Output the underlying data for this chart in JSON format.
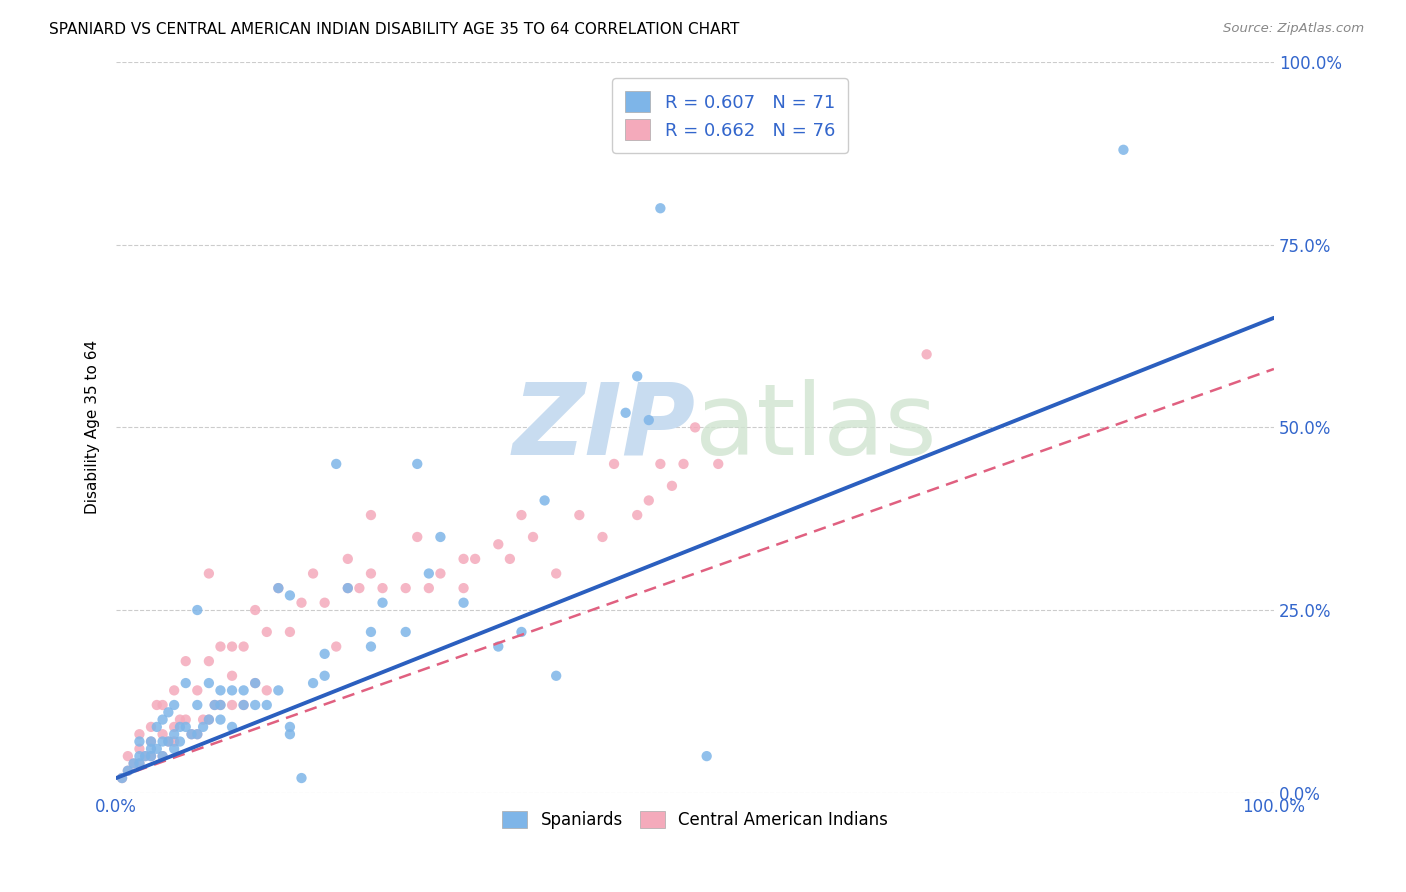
{
  "title": "SPANIARD VS CENTRAL AMERICAN INDIAN DISABILITY AGE 35 TO 64 CORRELATION CHART",
  "source": "Source: ZipAtlas.com",
  "ylabel": "Disability Age 35 to 64",
  "xlim": [
    0,
    1.0
  ],
  "ylim": [
    0,
    1.0
  ],
  "xtick_labels": [
    "0.0%",
    "100.0%"
  ],
  "ytick_labels": [
    "0.0%",
    "25.0%",
    "50.0%",
    "75.0%",
    "100.0%"
  ],
  "ytick_positions": [
    0.0,
    0.25,
    0.5,
    0.75,
    1.0
  ],
  "xtick_positions": [
    0.0,
    1.0
  ],
  "color_spaniard": "#7EB5E8",
  "color_cai": "#F4AABB",
  "color_line_spaniard": "#2B5FBF",
  "color_line_cai": "#E06080",
  "watermark_color": "#D8E8F5",
  "spaniard_x": [
    0.005,
    0.01,
    0.015,
    0.02,
    0.02,
    0.02,
    0.025,
    0.03,
    0.03,
    0.03,
    0.035,
    0.035,
    0.04,
    0.04,
    0.04,
    0.045,
    0.045,
    0.05,
    0.05,
    0.05,
    0.055,
    0.055,
    0.06,
    0.06,
    0.065,
    0.07,
    0.07,
    0.07,
    0.075,
    0.08,
    0.08,
    0.085,
    0.09,
    0.09,
    0.09,
    0.1,
    0.1,
    0.11,
    0.11,
    0.12,
    0.12,
    0.13,
    0.14,
    0.14,
    0.15,
    0.15,
    0.16,
    0.17,
    0.18,
    0.18,
    0.19,
    0.2,
    0.22,
    0.22,
    0.23,
    0.25,
    0.26,
    0.27,
    0.28,
    0.3,
    0.15,
    0.33,
    0.35,
    0.37,
    0.38,
    0.44,
    0.45,
    0.46,
    0.47,
    0.51,
    0.87
  ],
  "spaniard_y": [
    0.02,
    0.03,
    0.04,
    0.04,
    0.05,
    0.07,
    0.05,
    0.05,
    0.06,
    0.07,
    0.06,
    0.09,
    0.05,
    0.07,
    0.1,
    0.07,
    0.11,
    0.06,
    0.08,
    0.12,
    0.07,
    0.09,
    0.09,
    0.15,
    0.08,
    0.08,
    0.12,
    0.25,
    0.09,
    0.1,
    0.15,
    0.12,
    0.1,
    0.12,
    0.14,
    0.09,
    0.14,
    0.12,
    0.14,
    0.12,
    0.15,
    0.12,
    0.14,
    0.28,
    0.09,
    0.27,
    0.02,
    0.15,
    0.16,
    0.19,
    0.45,
    0.28,
    0.2,
    0.22,
    0.26,
    0.22,
    0.45,
    0.3,
    0.35,
    0.26,
    0.08,
    0.2,
    0.22,
    0.4,
    0.16,
    0.52,
    0.57,
    0.51,
    0.8,
    0.05,
    0.88
  ],
  "cai_x": [
    0.005,
    0.01,
    0.01,
    0.015,
    0.02,
    0.02,
    0.02,
    0.025,
    0.03,
    0.03,
    0.03,
    0.035,
    0.04,
    0.04,
    0.04,
    0.045,
    0.05,
    0.05,
    0.05,
    0.055,
    0.06,
    0.06,
    0.065,
    0.07,
    0.07,
    0.075,
    0.08,
    0.08,
    0.08,
    0.085,
    0.09,
    0.09,
    0.1,
    0.1,
    0.1,
    0.11,
    0.11,
    0.12,
    0.12,
    0.13,
    0.13,
    0.14,
    0.15,
    0.16,
    0.17,
    0.18,
    0.19,
    0.2,
    0.2,
    0.21,
    0.22,
    0.22,
    0.23,
    0.25,
    0.26,
    0.27,
    0.28,
    0.3,
    0.3,
    0.31,
    0.33,
    0.34,
    0.35,
    0.36,
    0.38,
    0.4,
    0.42,
    0.43,
    0.45,
    0.46,
    0.47,
    0.48,
    0.49,
    0.5,
    0.52,
    0.7
  ],
  "cai_y": [
    0.02,
    0.03,
    0.05,
    0.04,
    0.04,
    0.06,
    0.08,
    0.05,
    0.05,
    0.07,
    0.09,
    0.12,
    0.05,
    0.08,
    0.12,
    0.07,
    0.07,
    0.09,
    0.14,
    0.1,
    0.1,
    0.18,
    0.08,
    0.08,
    0.14,
    0.1,
    0.1,
    0.18,
    0.3,
    0.12,
    0.12,
    0.2,
    0.12,
    0.16,
    0.2,
    0.12,
    0.2,
    0.15,
    0.25,
    0.14,
    0.22,
    0.28,
    0.22,
    0.26,
    0.3,
    0.26,
    0.2,
    0.28,
    0.32,
    0.28,
    0.3,
    0.38,
    0.28,
    0.28,
    0.35,
    0.28,
    0.3,
    0.28,
    0.32,
    0.32,
    0.34,
    0.32,
    0.38,
    0.35,
    0.3,
    0.38,
    0.35,
    0.45,
    0.38,
    0.4,
    0.45,
    0.42,
    0.45,
    0.5,
    0.45,
    0.6
  ],
  "line_spaniard_x0": 0.0,
  "line_spaniard_y0": 0.02,
  "line_spaniard_x1": 1.0,
  "line_spaniard_y1": 0.65,
  "line_cai_x0": 0.0,
  "line_cai_y0": 0.02,
  "line_cai_x1": 1.0,
  "line_cai_y1": 0.58
}
